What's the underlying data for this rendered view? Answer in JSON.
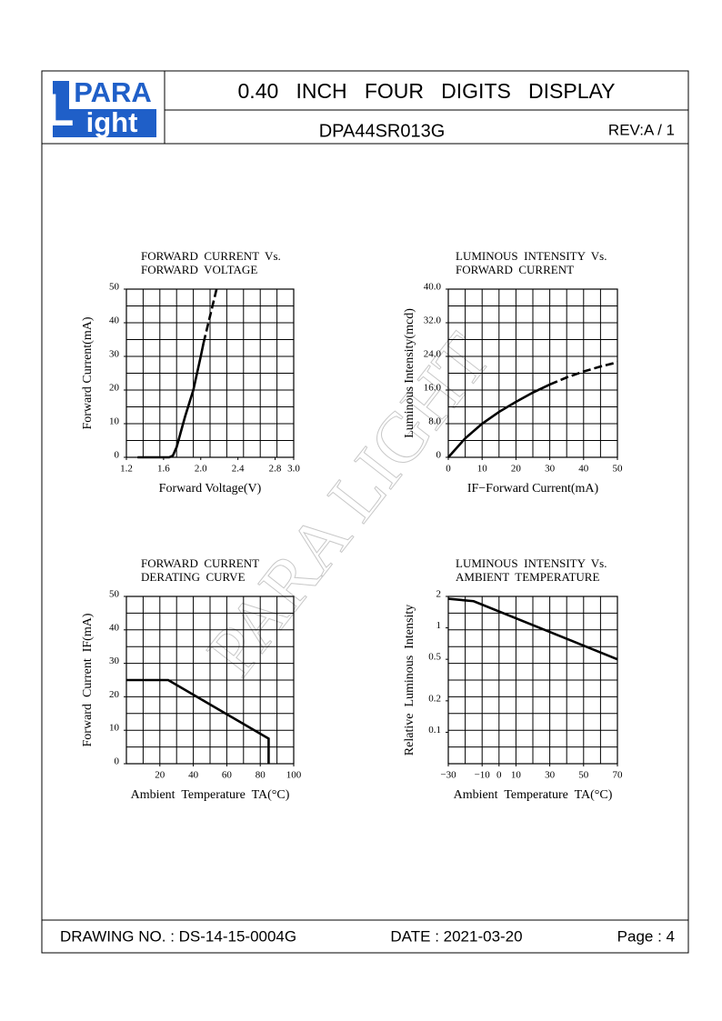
{
  "header": {
    "logo_top": "PARA",
    "logo_letter": "L",
    "logo_bottom": "ight",
    "title": "0.40   INCH   FOUR   DIGITS   DISPLAY",
    "part_number": "DPA44SR013G",
    "revision": "REV:A / 1"
  },
  "watermark": "PARA LIGHT",
  "chart_data": [
    {
      "type": "line",
      "title": [
        "FORWARD  CURRENT  Vs.",
        "FORWARD  VOLTAGE"
      ],
      "x_label": "Forward Voltage(V)",
      "y_label": "Forward Current(mA)",
      "xlim": [
        1.2,
        3.0
      ],
      "xticks": [
        1.2,
        1.6,
        {
          "value": 2,
          "label": "2.0"
        },
        2.4,
        2.8,
        {
          "value": 3,
          "label": "3.0"
        }
      ],
      "ylim": [
        0,
        50
      ],
      "yticks": [
        0,
        10,
        20,
        30,
        40,
        50
      ],
      "grid": true,
      "series": [
        {
          "color": "#000000",
          "style": "solid",
          "x": [
            1.32,
            1.5,
            1.66,
            1.7,
            1.74,
            1.78,
            1.83,
            1.92,
            2.0,
            2.03
          ],
          "values": [
            0,
            0,
            0,
            0.5,
            3,
            7,
            12,
            20,
            30,
            34
          ]
        },
        {
          "color": "#000000",
          "style": "dashed",
          "x": [
            2.03,
            2.1,
            2.17
          ],
          "values": [
            34,
            42,
            50
          ]
        }
      ]
    },
    {
      "type": "line",
      "title": [
        "LUMINOUS  INTENSITY  Vs.",
        "FORWARD  CURRENT"
      ],
      "x_label": "IF−Forward Current(mA)",
      "y_label": "Luminous Intensity(mcd)",
      "xlim": [
        0,
        50
      ],
      "xticks": [
        0,
        10,
        20,
        30,
        40,
        50
      ],
      "ylim": [
        0,
        40
      ],
      "yticks": [
        0,
        {
          "value": 8,
          "label": "8.0"
        },
        {
          "value": 16,
          "label": "16.0"
        },
        {
          "value": 24,
          "label": "24.0"
        },
        {
          "value": 32,
          "label": "32.0"
        },
        {
          "value": 40,
          "label": "40.0"
        }
      ],
      "grid": true,
      "series": [
        {
          "color": "#000000",
          "style": "solid",
          "x": [
            0,
            5,
            10,
            15,
            20,
            25,
            30
          ],
          "values": [
            0,
            4.5,
            8,
            10.8,
            13.2,
            15.4,
            17.3
          ]
        },
        {
          "color": "#000000",
          "style": "dashed",
          "x": [
            30,
            35,
            40,
            45,
            50
          ],
          "values": [
            17.3,
            19,
            20.4,
            21.6,
            22.6
          ]
        }
      ]
    },
    {
      "type": "line",
      "title": [
        "FORWARD  CURRENT",
        "DERATING  CURVE"
      ],
      "x_label": "Ambient  Temperature  TA(°C)",
      "y_label": "Forward  Current  IF(mA)",
      "xlim": [
        0,
        100
      ],
      "xticks": [
        20,
        40,
        60,
        80,
        100
      ],
      "ylim": [
        0,
        50
      ],
      "yticks": [
        0,
        10,
        20,
        30,
        40,
        50
      ],
      "grid": true,
      "series": [
        {
          "color": "#000000",
          "style": "solid",
          "x": [
            0,
            25,
            85,
            85
          ],
          "values": [
            25,
            25,
            7.5,
            0
          ]
        }
      ]
    },
    {
      "type": "line",
      "title": [
        "LUMINOUS  INTENSITY  Vs.",
        "AMBIENT  TEMPERATURE"
      ],
      "x_label": "Ambient  Temperature  TA(°C)",
      "y_label": "Relative  Luminous  Intensity",
      "xlim": [
        -30,
        70
      ],
      "xticks": [
        {
          "value": -30,
          "label": "−30"
        },
        {
          "value": -10,
          "label": "−10"
        },
        0,
        10,
        30,
        50,
        70
      ],
      "ylim": [
        0.05,
        2
      ],
      "ylog": true,
      "yticks": [
        0.1,
        0.2,
        0.5,
        1,
        2
      ],
      "grid": true,
      "series": [
        {
          "color": "#000000",
          "style": "solid",
          "x": [
            -30,
            -15,
            70
          ],
          "values": [
            1.9,
            1.8,
            0.5
          ]
        }
      ]
    }
  ],
  "footer": {
    "drawing_no": "DRAWING NO. : DS-14-15-0004G",
    "date": "DATE : 2021-03-20",
    "page": "Page : 4"
  }
}
